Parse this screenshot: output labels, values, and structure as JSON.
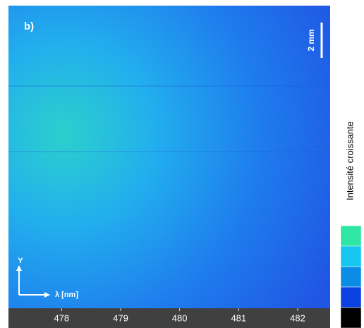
{
  "chart_data": {
    "type": "image",
    "panel_label": "b)",
    "scale_bar_label": "2 mm",
    "y_axis_label": "Y",
    "x_axis_label": "λ [nm]",
    "xlim": [
      477.1,
      482.55
    ],
    "xticks": [
      478,
      479,
      480,
      481,
      482
    ],
    "colorbar": {
      "label": "Intensité croissante",
      "colors": [
        "#2fe6a4",
        "#14c6f0",
        "#0b8de6",
        "#0b42e2",
        "#000000"
      ]
    }
  }
}
